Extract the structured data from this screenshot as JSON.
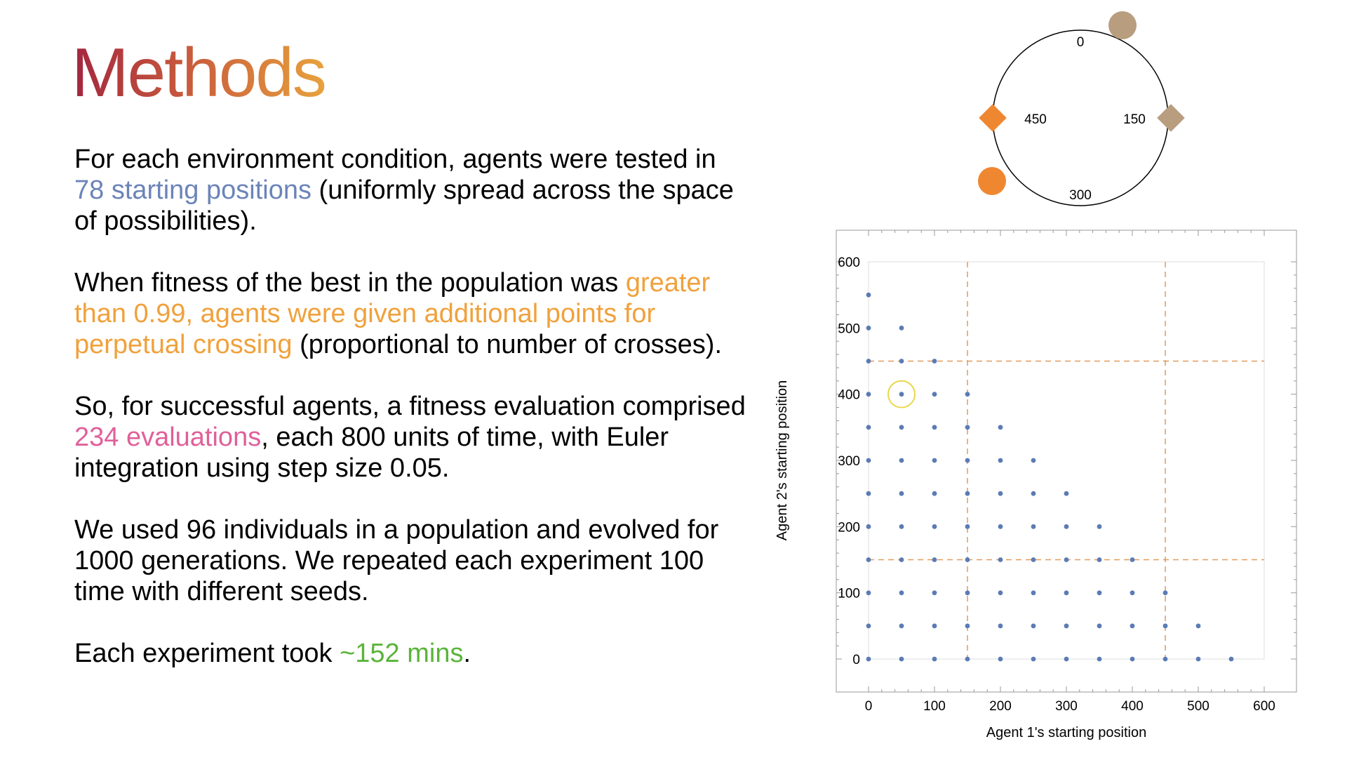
{
  "slide": {
    "title": "Methods"
  },
  "paragraphs": {
    "p1": {
      "a": "For each environment condition, agents were tested in ",
      "hl": "78 starting positions",
      "b": " (uniformly spread across the space of possibilities)."
    },
    "p2": {
      "a": "When fitness of the best in the population was ",
      "hl": "greater than 0.99, agents were given additional points for perpetual crossing",
      "b": " (proportional to number of crosses)."
    },
    "p3": {
      "a": "So, for successful agents, a fitness evaluation comprised ",
      "hl": "234 evaluations",
      "b": ", each 800 units of time, with Euler integration using step size 0.05."
    },
    "p4": {
      "a": "We used 96 individuals in a population and evolved for 1000 generations. We repeated each experiment 100 time with different seeds."
    },
    "p5": {
      "a": "Each experiment took ",
      "hl": "~152 mins",
      "b": "."
    }
  },
  "colors": {
    "blue": "#6b84b8",
    "orange": "#f0a13c",
    "pink": "#e0609a",
    "green": "#5ab43a",
    "point": "#5b7bb5",
    "dash": "#e39a5a",
    "diamond_orange": "#ef8731",
    "tan": "#b89d7f",
    "highlight_ring": "#e8d84a"
  },
  "diagram": {
    "labels": {
      "top": "0",
      "right": "150",
      "bottom": "300",
      "left": "450"
    },
    "markers": [
      "tan-circle",
      "tan-diamond",
      "orange-diamond",
      "orange-circle"
    ]
  },
  "chart_data": {
    "type": "scatter",
    "xlabel": "Agent 1's starting position",
    "ylabel": "Agent 2's starting position",
    "xlim": [
      0,
      600
    ],
    "ylim": [
      0,
      600
    ],
    "xticks": [
      0,
      100,
      200,
      300,
      400,
      500,
      600
    ],
    "yticks": [
      0,
      100,
      200,
      300,
      400,
      500,
      600
    ],
    "grid": false,
    "step": 50,
    "max_sum": 550,
    "point_count": 78,
    "reference_lines": {
      "x": [
        150,
        450
      ],
      "y": [
        150,
        450
      ]
    },
    "highlighted_point": [
      50,
      400
    ]
  }
}
